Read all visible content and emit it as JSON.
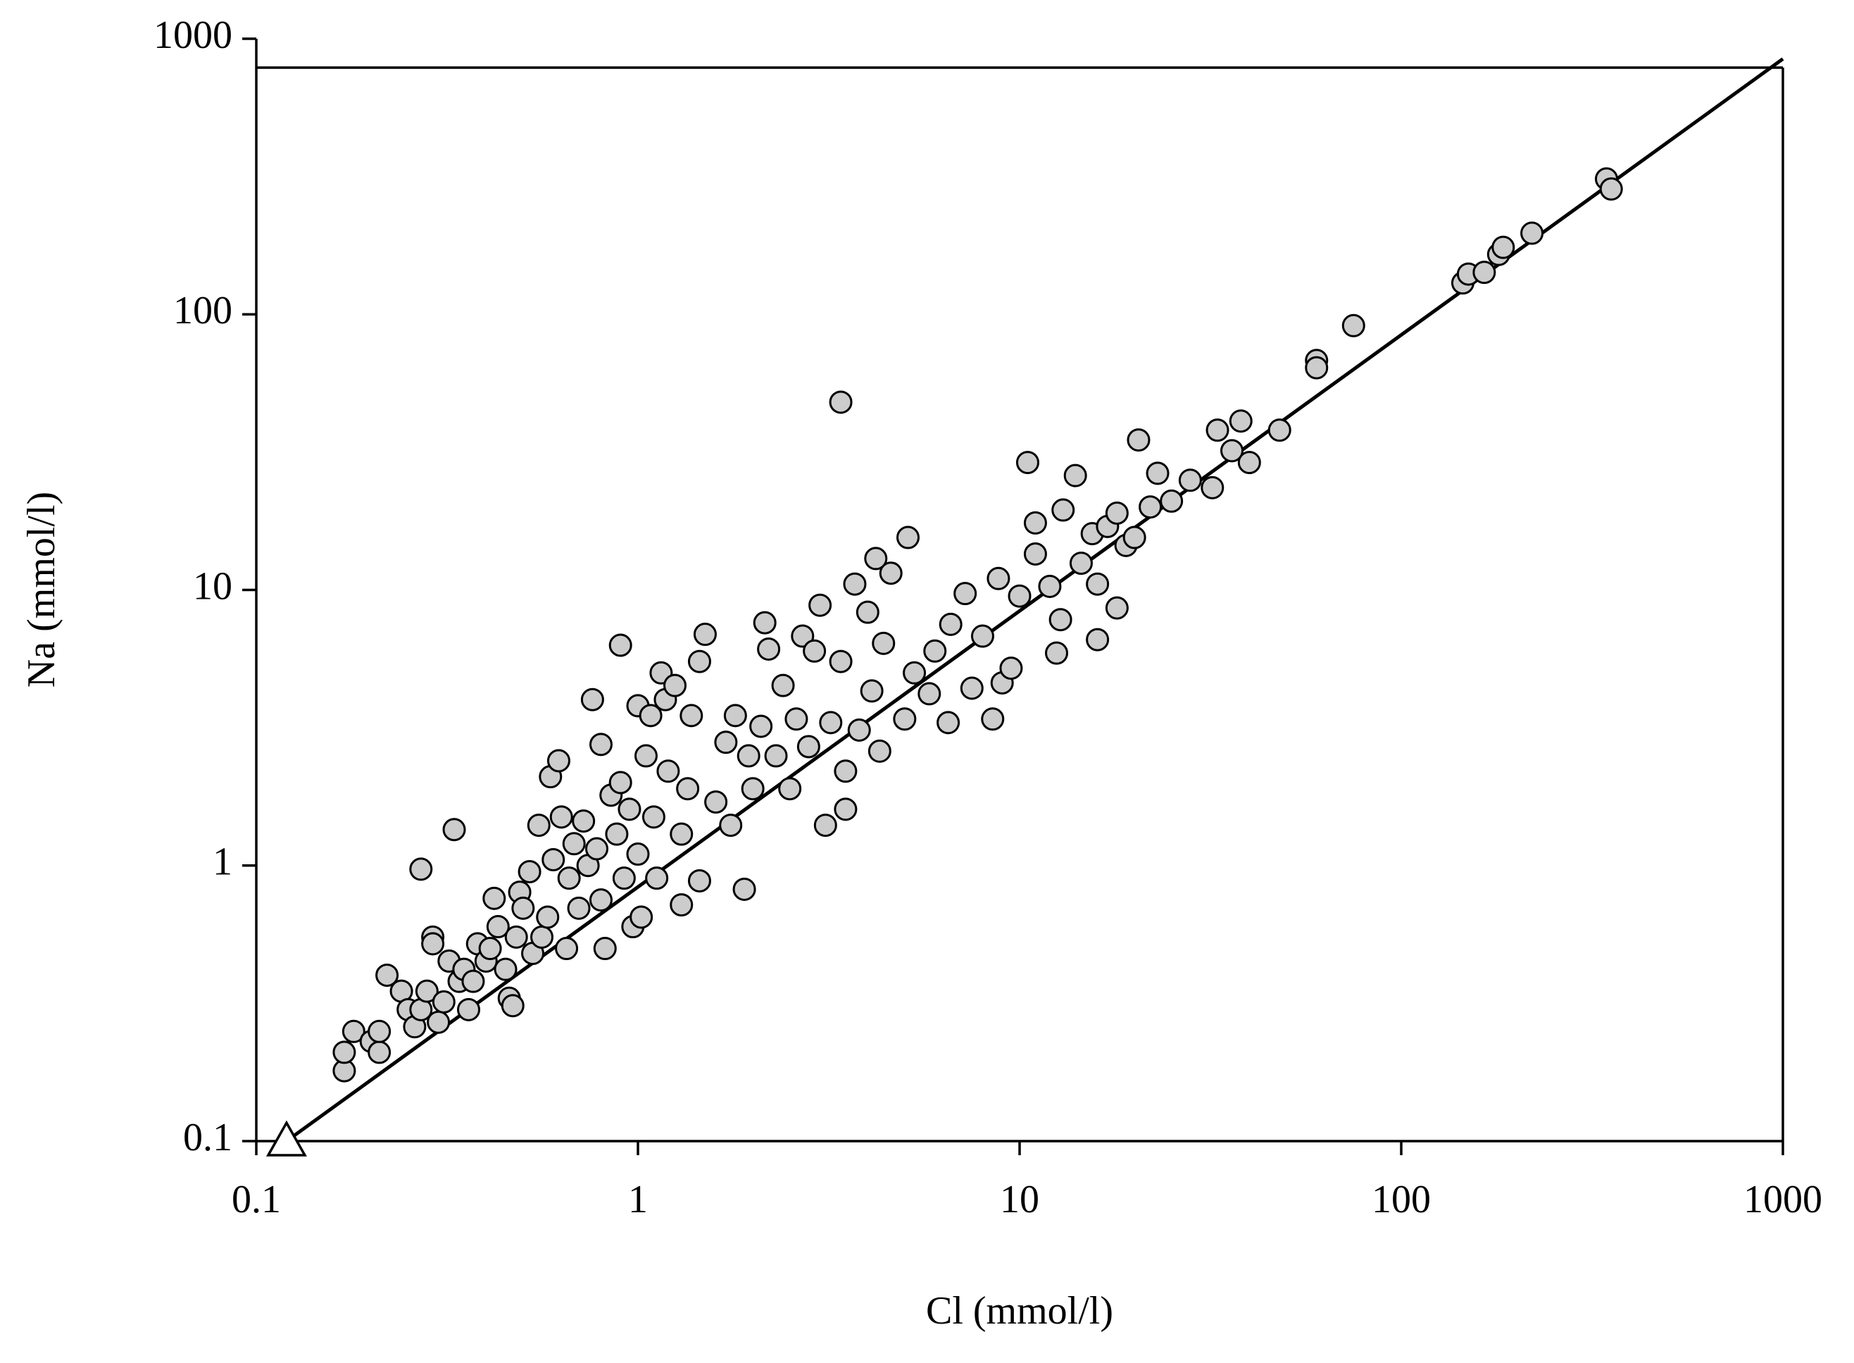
{
  "chart_data": {
    "type": "scatter",
    "x_label": "Cl (mmol/l)",
    "y_label": "Na (mmol/l)",
    "xlim": [
      0.1,
      1000
    ],
    "ylim": [
      0.1,
      1000
    ],
    "x_scale": "log",
    "y_scale": "log",
    "xticks": [
      0.1,
      1,
      10,
      100,
      1000
    ],
    "yticks": [
      0.1,
      1,
      10,
      100,
      1000
    ],
    "grid": false,
    "series": [
      {
        "color": "#cccccc",
        "x": [
          0.17,
          0.17,
          0.18,
          0.2,
          0.21,
          0.21,
          0.22,
          0.24,
          0.25,
          0.26,
          0.27,
          0.27,
          0.28,
          0.29,
          0.29,
          0.3,
          0.31,
          0.32,
          0.33,
          0.34,
          0.35,
          0.36,
          0.37,
          0.38,
          0.4,
          0.41,
          0.42,
          0.43,
          0.45,
          0.46,
          0.47,
          0.48,
          0.49,
          0.5,
          0.52,
          0.53,
          0.55,
          0.56,
          0.58,
          0.59,
          0.6,
          0.62,
          0.63,
          0.65,
          0.66,
          0.68,
          0.7,
          0.72,
          0.74,
          0.76,
          0.78,
          0.8,
          0.8,
          0.82,
          0.85,
          0.88,
          0.9,
          0.9,
          0.92,
          0.95,
          0.97,
          1.0,
          1.0,
          1.02,
          1.05,
          1.08,
          1.1,
          1.12,
          1.15,
          1.18,
          1.2,
          1.25,
          1.3,
          1.3,
          1.35,
          1.38,
          1.45,
          1.45,
          1.5,
          1.6,
          1.7,
          1.75,
          1.8,
          1.9,
          1.95,
          2.0,
          2.1,
          2.15,
          2.2,
          2.3,
          2.4,
          2.5,
          2.6,
          2.7,
          2.8,
          2.9,
          3.0,
          3.1,
          3.2,
          3.4,
          3.4,
          3.5,
          3.5,
          3.7,
          3.8,
          4.0,
          4.1,
          4.2,
          4.3,
          4.4,
          4.6,
          5.0,
          5.1,
          5.3,
          5.8,
          6.0,
          6.5,
          6.6,
          7.2,
          7.5,
          8.0,
          8.5,
          8.8,
          9.0,
          9.5,
          10,
          10.5,
          11,
          11,
          12,
          12.5,
          12.8,
          13,
          14,
          14.5,
          15.5,
          16,
          16,
          17,
          18,
          18,
          19,
          20,
          20.5,
          22,
          23,
          25,
          28,
          32,
          33,
          36,
          38,
          40,
          48,
          60,
          60,
          75,
          145,
          150,
          165,
          180,
          185,
          220,
          345,
          355
        ],
        "y": [
          0.18,
          0.21,
          0.25,
          0.23,
          0.21,
          0.25,
          0.4,
          0.35,
          0.3,
          0.26,
          0.97,
          0.3,
          0.35,
          0.55,
          0.52,
          0.27,
          0.32,
          0.45,
          1.35,
          0.38,
          0.42,
          0.3,
          0.38,
          0.52,
          0.45,
          0.5,
          0.76,
          0.6,
          0.42,
          0.33,
          0.31,
          0.55,
          0.8,
          0.7,
          0.95,
          0.48,
          1.4,
          0.55,
          0.65,
          2.1,
          1.05,
          2.4,
          1.5,
          0.5,
          0.9,
          1.2,
          0.7,
          1.45,
          1.0,
          4.0,
          1.15,
          2.75,
          0.75,
          0.5,
          1.8,
          1.3,
          6.3,
          2.0,
          0.9,
          1.6,
          0.6,
          3.8,
          1.1,
          0.65,
          2.5,
          3.5,
          1.5,
          0.9,
          5.0,
          4.0,
          2.2,
          4.5,
          0.72,
          1.3,
          1.9,
          3.5,
          5.5,
          0.88,
          6.9,
          1.7,
          2.8,
          1.4,
          3.5,
          0.82,
          2.5,
          1.9,
          3.2,
          7.6,
          6.1,
          2.5,
          4.5,
          1.9,
          3.4,
          6.8,
          2.7,
          6.0,
          8.8,
          1.4,
          3.3,
          48,
          5.5,
          1.6,
          2.2,
          10.5,
          3.1,
          8.3,
          4.3,
          13,
          2.6,
          6.4,
          11.5,
          3.4,
          15.5,
          5.0,
          4.2,
          6.0,
          3.3,
          7.5,
          9.7,
          4.4,
          6.8,
          3.4,
          11,
          4.6,
          5.2,
          9.5,
          29,
          17.5,
          13.5,
          10.3,
          5.9,
          7.8,
          19.5,
          26,
          12.5,
          16,
          10.5,
          6.6,
          17,
          19,
          8.6,
          14.5,
          15.5,
          35,
          20,
          26.5,
          21,
          25,
          23.5,
          38,
          32,
          41,
          29,
          38,
          68,
          64,
          91,
          130,
          140,
          142,
          165,
          175,
          197,
          310,
          285
        ]
      }
    ],
    "line": {
      "x": [
        0.12,
        1000
      ],
      "y": [
        0.1,
        845
      ]
    },
    "reference_point": {
      "x": 0.12,
      "y": 0.1
    }
  }
}
